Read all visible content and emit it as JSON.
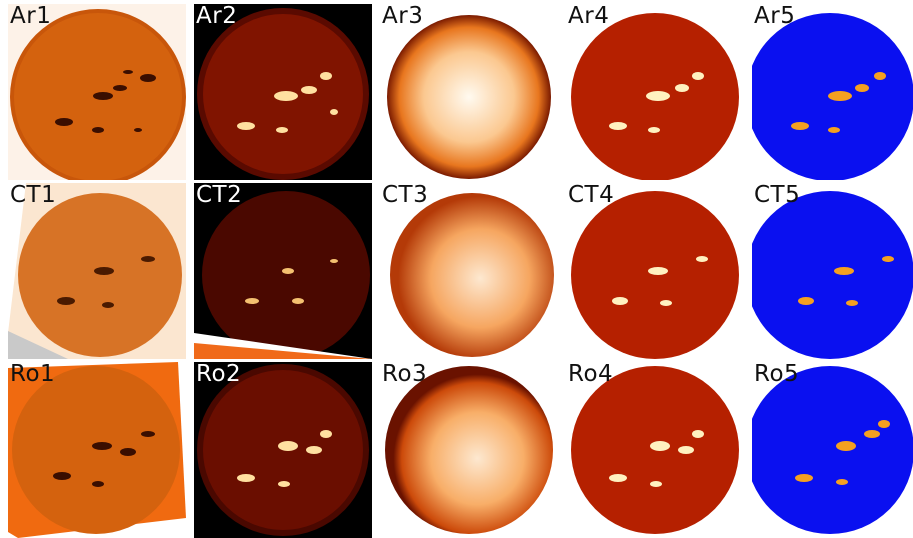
{
  "rows": [
    {
      "name": "ar",
      "panels": [
        {
          "label": "Ar1",
          "style": "raw",
          "label_color": "dark"
        },
        {
          "label": "Ar2",
          "style": "dark",
          "label_color": "light"
        },
        {
          "label": "Ar3",
          "style": "limb",
          "label_color": "dark"
        },
        {
          "label": "Ar4",
          "style": "red",
          "label_color": "dark"
        },
        {
          "label": "Ar5",
          "style": "blue",
          "label_color": "dark"
        }
      ]
    },
    {
      "name": "ct",
      "panels": [
        {
          "label": "CT1",
          "style": "raw",
          "label_color": "dark"
        },
        {
          "label": "CT2",
          "style": "dark",
          "label_color": "light"
        },
        {
          "label": "CT3",
          "style": "limb",
          "label_color": "dark"
        },
        {
          "label": "CT4",
          "style": "red",
          "label_color": "dark"
        },
        {
          "label": "CT5",
          "style": "blue",
          "label_color": "dark"
        }
      ]
    },
    {
      "name": "ro",
      "panels": [
        {
          "label": "Ro1",
          "style": "raw",
          "label_color": "dark"
        },
        {
          "label": "Ro2",
          "style": "dark",
          "label_color": "light"
        },
        {
          "label": "Ro3",
          "style": "limb",
          "label_color": "dark"
        },
        {
          "label": "Ro4",
          "style": "red",
          "label_color": "dark"
        },
        {
          "label": "Ro5",
          "style": "blue",
          "label_color": "dark"
        }
      ]
    }
  ],
  "colors": {
    "disk_orange": "#e36a10",
    "disk_dark": "#3a0500",
    "disk_red": "#b52000",
    "disk_blue": "#0a10f0",
    "spot_orange": "#f5a020",
    "spot_bright": "#fff4c8"
  }
}
